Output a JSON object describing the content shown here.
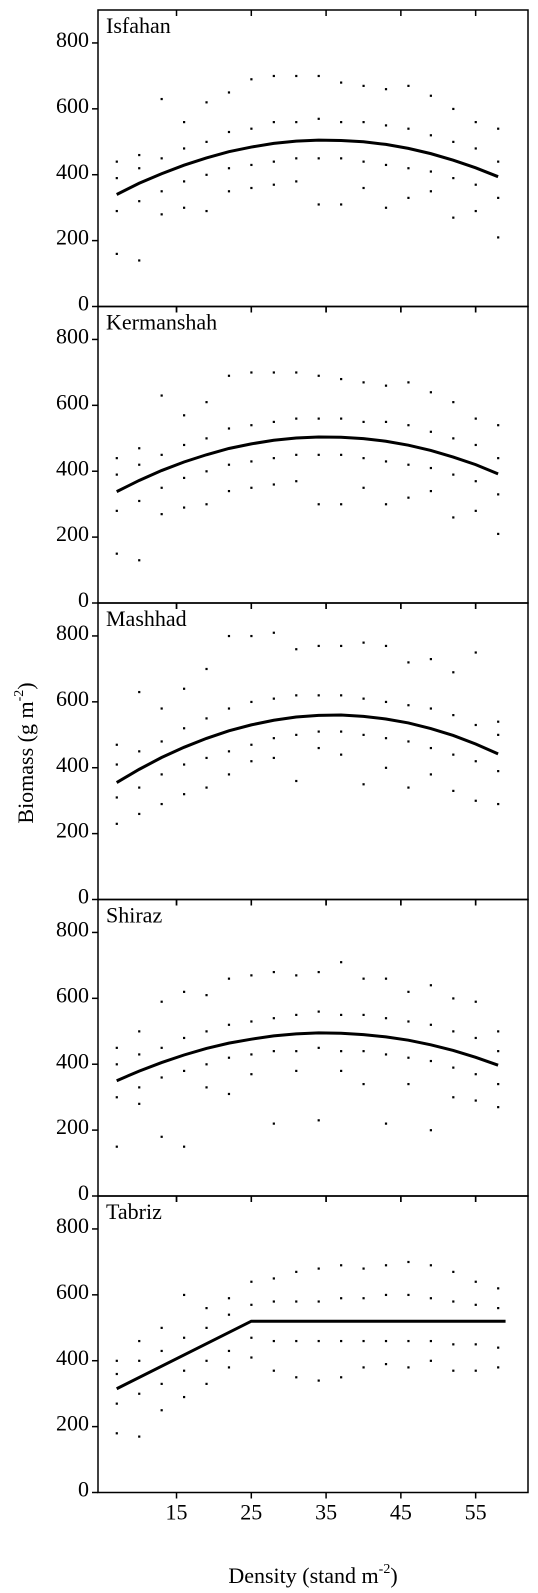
{
  "labels": {
    "ylabel": [
      "Biomass (g m",
      "-2",
      ")"
    ],
    "xlabel": [
      "Density (stand m",
      "-2",
      ")"
    ]
  },
  "chart_data": [
    {
      "type": "scatter",
      "title": "Isfahan",
      "xlim": [
        4.5,
        62
      ],
      "ylim": [
        0,
        900
      ],
      "yticks": [
        0,
        200,
        400,
        600,
        800
      ],
      "xticks": [
        15,
        25,
        35,
        45,
        55
      ],
      "color": "#000000",
      "x": [
        7,
        10,
        13,
        16,
        19,
        22,
        25,
        28,
        31,
        34,
        37,
        40,
        43,
        46,
        49,
        52,
        55,
        58
      ],
      "points": [
        [
          160,
          290,
          390,
          440
        ],
        [
          140,
          320,
          420,
          460
        ],
        [
          280,
          350,
          450,
          630
        ],
        [
          300,
          380,
          480,
          560
        ],
        [
          290,
          400,
          500,
          620
        ],
        [
          350,
          420,
          530,
          650
        ],
        [
          360,
          430,
          540,
          690
        ],
        [
          370,
          440,
          560,
          700
        ],
        [
          380,
          450,
          560,
          700
        ],
        [
          310,
          450,
          570,
          700
        ],
        [
          310,
          450,
          560,
          680
        ],
        [
          360,
          440,
          560,
          670
        ],
        [
          300,
          430,
          550,
          660
        ],
        [
          330,
          420,
          540,
          670
        ],
        [
          350,
          410,
          520,
          640
        ],
        [
          270,
          390,
          500,
          600
        ],
        [
          290,
          370,
          480,
          560
        ],
        [
          210,
          330,
          440,
          540
        ]
      ],
      "fit": {
        "x": [
          7,
          10,
          13,
          16,
          19,
          22,
          25,
          28,
          31,
          34,
          37,
          40,
          43,
          46,
          49,
          52,
          55,
          58
        ],
        "y": [
          340,
          374,
          403,
          429,
          451,
          470,
          484,
          495,
          502,
          505,
          504,
          500,
          492,
          480,
          464,
          444,
          421,
          394
        ]
      }
    },
    {
      "type": "scatter",
      "title": "Kermanshah",
      "xlim": [
        4.5,
        62
      ],
      "ylim": [
        0,
        900
      ],
      "yticks": [
        0,
        200,
        400,
        600,
        800
      ],
      "xticks": [
        15,
        25,
        35,
        45,
        55
      ],
      "color": "#000000",
      "x": [
        7,
        10,
        13,
        16,
        19,
        22,
        25,
        28,
        31,
        34,
        37,
        40,
        43,
        46,
        49,
        52,
        55,
        58
      ],
      "points": [
        [
          150,
          280,
          390,
          440
        ],
        [
          130,
          310,
          420,
          470
        ],
        [
          270,
          350,
          450,
          630
        ],
        [
          290,
          380,
          480,
          570
        ],
        [
          300,
          400,
          500,
          610
        ],
        [
          340,
          420,
          530,
          690
        ],
        [
          350,
          430,
          540,
          700
        ],
        [
          360,
          440,
          550,
          700
        ],
        [
          370,
          450,
          560,
          700
        ],
        [
          300,
          450,
          560,
          690
        ],
        [
          300,
          450,
          560,
          680
        ],
        [
          350,
          440,
          550,
          670
        ],
        [
          300,
          430,
          550,
          660
        ],
        [
          320,
          420,
          540,
          670
        ],
        [
          340,
          410,
          520,
          640
        ],
        [
          260,
          390,
          500,
          610
        ],
        [
          280,
          370,
          480,
          560
        ],
        [
          210,
          330,
          440,
          540
        ]
      ],
      "fit": {
        "x": [
          7,
          10,
          13,
          16,
          19,
          22,
          25,
          28,
          31,
          34,
          37,
          40,
          43,
          46,
          49,
          52,
          55,
          58
        ],
        "y": [
          338,
          372,
          402,
          428,
          450,
          469,
          483,
          494,
          501,
          504,
          503,
          499,
          491,
          479,
          463,
          443,
          420,
          392
        ]
      }
    },
    {
      "type": "scatter",
      "title": "Mashhad",
      "xlim": [
        4.5,
        62
      ],
      "ylim": [
        0,
        900
      ],
      "yticks": [
        0,
        200,
        400,
        600,
        800
      ],
      "xticks": [
        15,
        25,
        35,
        45,
        55
      ],
      "color": "#000000",
      "x": [
        7,
        10,
        13,
        16,
        19,
        22,
        25,
        28,
        31,
        34,
        37,
        40,
        43,
        46,
        49,
        52,
        55,
        58
      ],
      "points": [
        [
          230,
          310,
          410,
          470
        ],
        [
          260,
          340,
          450,
          630
        ],
        [
          290,
          380,
          480,
          580
        ],
        [
          320,
          410,
          520,
          640
        ],
        [
          340,
          430,
          550,
          700
        ],
        [
          380,
          450,
          580,
          800
        ],
        [
          420,
          470,
          600,
          800
        ],
        [
          430,
          490,
          610,
          810
        ],
        [
          360,
          500,
          620,
          760
        ],
        [
          460,
          510,
          620,
          770
        ],
        [
          440,
          510,
          620,
          770
        ],
        [
          350,
          500,
          610,
          780
        ],
        [
          400,
          490,
          600,
          770
        ],
        [
          340,
          480,
          590,
          720
        ],
        [
          380,
          460,
          580,
          730
        ],
        [
          330,
          440,
          560,
          690
        ],
        [
          300,
          420,
          530,
          750
        ],
        [
          290,
          390,
          500,
          540
        ]
      ],
      "fit": {
        "x": [
          7,
          10,
          13,
          16,
          19,
          22,
          25,
          28,
          31,
          34,
          37,
          40,
          43,
          46,
          49,
          52,
          55,
          58
        ],
        "y": [
          355,
          395,
          431,
          462,
          489,
          512,
          530,
          544,
          554,
          559,
          560,
          556,
          548,
          536,
          519,
          498,
          472,
          442
        ]
      }
    },
    {
      "type": "scatter",
      "title": "Shiraz",
      "xlim": [
        4.5,
        62
      ],
      "ylim": [
        0,
        900
      ],
      "yticks": [
        0,
        200,
        400,
        600,
        800
      ],
      "xticks": [
        15,
        25,
        35,
        45,
        55
      ],
      "color": "#000000",
      "x": [
        7,
        10,
        13,
        16,
        19,
        22,
        25,
        28,
        31,
        34,
        37,
        40,
        43,
        46,
        49,
        52,
        55,
        58
      ],
      "points": [
        [
          150,
          300,
          400,
          450
        ],
        [
          280,
          330,
          430,
          500
        ],
        [
          180,
          360,
          450,
          590
        ],
        [
          150,
          380,
          480,
          620
        ],
        [
          330,
          400,
          500,
          610
        ],
        [
          310,
          420,
          520,
          660
        ],
        [
          370,
          430,
          530,
          670
        ],
        [
          220,
          440,
          540,
          680
        ],
        [
          380,
          440,
          550,
          670
        ],
        [
          230,
          450,
          560,
          680
        ],
        [
          380,
          440,
          550,
          710
        ],
        [
          340,
          440,
          550,
          660
        ],
        [
          220,
          430,
          540,
          660
        ],
        [
          340,
          420,
          530,
          620
        ],
        [
          200,
          410,
          520,
          640
        ],
        [
          300,
          390,
          500,
          600
        ],
        [
          290,
          370,
          480,
          590
        ],
        [
          270,
          340,
          440,
          500
        ]
      ],
      "fit": {
        "x": [
          7,
          10,
          13,
          16,
          19,
          22,
          25,
          28,
          31,
          34,
          37,
          40,
          43,
          46,
          49,
          52,
          55,
          58
        ],
        "y": [
          350,
          379,
          405,
          428,
          448,
          464,
          476,
          486,
          492,
          495,
          494,
          490,
          483,
          473,
          459,
          442,
          421,
          397
        ]
      }
    },
    {
      "type": "scatter",
      "title": "Tabriz",
      "xlim": [
        4.5,
        62
      ],
      "ylim": [
        0,
        900
      ],
      "yticks": [
        0,
        200,
        400,
        600,
        800
      ],
      "xticks": [
        15,
        25,
        35,
        45,
        55
      ],
      "color": "#000000",
      "x": [
        7,
        10,
        13,
        16,
        19,
        22,
        25,
        28,
        31,
        34,
        37,
        40,
        43,
        46,
        49,
        52,
        55,
        58
      ],
      "points": [
        [
          180,
          270,
          360,
          400
        ],
        [
          170,
          300,
          400,
          460
        ],
        [
          250,
          330,
          430,
          500
        ],
        [
          290,
          370,
          470,
          600
        ],
        [
          330,
          400,
          500,
          560
        ],
        [
          380,
          430,
          540,
          590
        ],
        [
          410,
          470,
          570,
          640
        ],
        [
          370,
          460,
          580,
          650
        ],
        [
          350,
          460,
          580,
          670
        ],
        [
          340,
          460,
          580,
          680
        ],
        [
          350,
          460,
          590,
          690
        ],
        [
          380,
          460,
          590,
          680
        ],
        [
          390,
          460,
          600,
          690
        ],
        [
          380,
          460,
          600,
          700
        ],
        [
          400,
          460,
          590,
          690
        ],
        [
          370,
          450,
          580,
          670
        ],
        [
          370,
          450,
          570,
          640
        ],
        [
          380,
          440,
          560,
          620
        ]
      ],
      "fit": {
        "x": [
          7,
          25,
          59
        ],
        "y": [
          315,
          520,
          520
        ]
      }
    }
  ]
}
